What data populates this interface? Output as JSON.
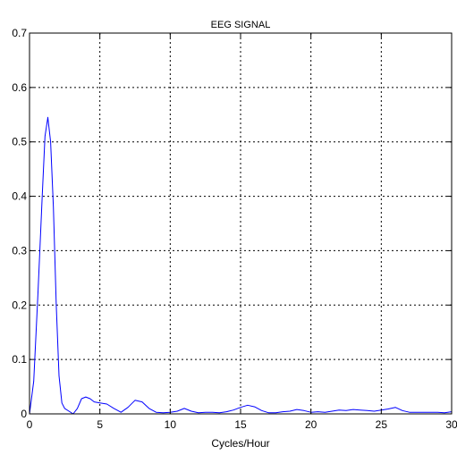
{
  "chart_data": {
    "type": "line",
    "title": "EEG SIGNAL",
    "xlabel": "Cycles/Hour",
    "ylabel": "",
    "xlim": [
      0,
      30
    ],
    "ylim": [
      0,
      0.7
    ],
    "xticks": [
      0,
      5,
      10,
      15,
      20,
      25,
      30
    ],
    "yticks": [
      0,
      0.1,
      0.2,
      0.3,
      0.4,
      0.5,
      0.6,
      0.7
    ],
    "ytick_labels": [
      "0",
      "0.1",
      "0.2",
      "0.3",
      "0.4",
      "0.5",
      "0.6",
      "0.7"
    ],
    "grid": true,
    "series": [
      {
        "color": "#0000ff",
        "x": [
          0,
          0.3,
          0.6,
          0.9,
          1.1,
          1.3,
          1.5,
          1.7,
          1.9,
          2.1,
          2.3,
          2.5,
          2.8,
          3.1,
          3.4,
          3.7,
          4.0,
          4.3,
          4.6,
          5.0,
          5.5,
          6.0,
          6.5,
          7.0,
          7.5,
          8.0,
          8.5,
          9.0,
          9.5,
          10.0,
          10.5,
          11.0,
          11.5,
          12.0,
          12.5,
          13.0,
          13.5,
          14.0,
          14.5,
          15.0,
          15.5,
          16.0,
          16.5,
          17.0,
          17.5,
          18.0,
          18.5,
          19.0,
          19.5,
          20.0,
          20.5,
          21.0,
          21.5,
          22.0,
          22.5,
          23.0,
          23.5,
          24.0,
          24.5,
          25.0,
          25.5,
          26.0,
          26.5,
          27.0,
          27.5,
          28.0,
          28.5,
          29.0,
          29.5,
          30.0
        ],
        "y": [
          0.0,
          0.06,
          0.22,
          0.4,
          0.51,
          0.545,
          0.5,
          0.38,
          0.2,
          0.07,
          0.02,
          0.01,
          0.005,
          0.0,
          0.01,
          0.028,
          0.031,
          0.028,
          0.022,
          0.02,
          0.018,
          0.01,
          0.003,
          0.012,
          0.025,
          0.022,
          0.01,
          0.003,
          0.002,
          0.003,
          0.005,
          0.01,
          0.005,
          0.002,
          0.003,
          0.003,
          0.002,
          0.004,
          0.007,
          0.012,
          0.016,
          0.013,
          0.006,
          0.002,
          0.002,
          0.004,
          0.005,
          0.008,
          0.006,
          0.003,
          0.004,
          0.003,
          0.005,
          0.007,
          0.006,
          0.008,
          0.007,
          0.006,
          0.005,
          0.007,
          0.009,
          0.012,
          0.006,
          0.003,
          0.003,
          0.003,
          0.003,
          0.003,
          0.002,
          0.004
        ]
      }
    ]
  }
}
